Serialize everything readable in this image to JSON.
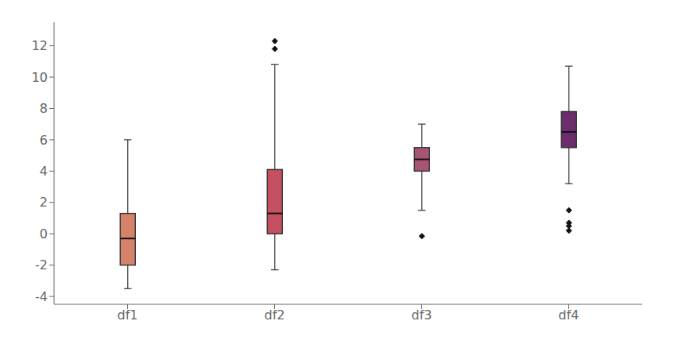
{
  "chart_data": {
    "type": "box",
    "categories": [
      "df1",
      "df2",
      "df3",
      "df4"
    ],
    "boxes": [
      {
        "q1": -2.0,
        "median": -0.3,
        "q3": 1.3,
        "whislo": -3.5,
        "whishi": 6.0,
        "fliers": []
      },
      {
        "q1": 0.0,
        "median": 1.3,
        "q3": 4.1,
        "whislo": -2.3,
        "whishi": 10.8,
        "fliers": [
          11.8,
          12.3
        ]
      },
      {
        "q1": 4.0,
        "median": 4.75,
        "q3": 5.5,
        "whislo": 1.5,
        "whishi": 7.0,
        "fliers": [
          -0.15
        ]
      },
      {
        "q1": 5.5,
        "median": 6.5,
        "q3": 7.8,
        "whislo": 3.2,
        "whishi": 10.7,
        "fliers": [
          0.2,
          0.5,
          0.7,
          1.5
        ]
      }
    ],
    "colors": [
      "#d4826a",
      "#c45060",
      "#a85575",
      "#6b2d6b"
    ],
    "ylim": [
      -4.5,
      13.5
    ],
    "yticks": [
      -4,
      -2,
      0,
      2,
      4,
      6,
      8,
      10,
      12
    ],
    "grid": false
  }
}
